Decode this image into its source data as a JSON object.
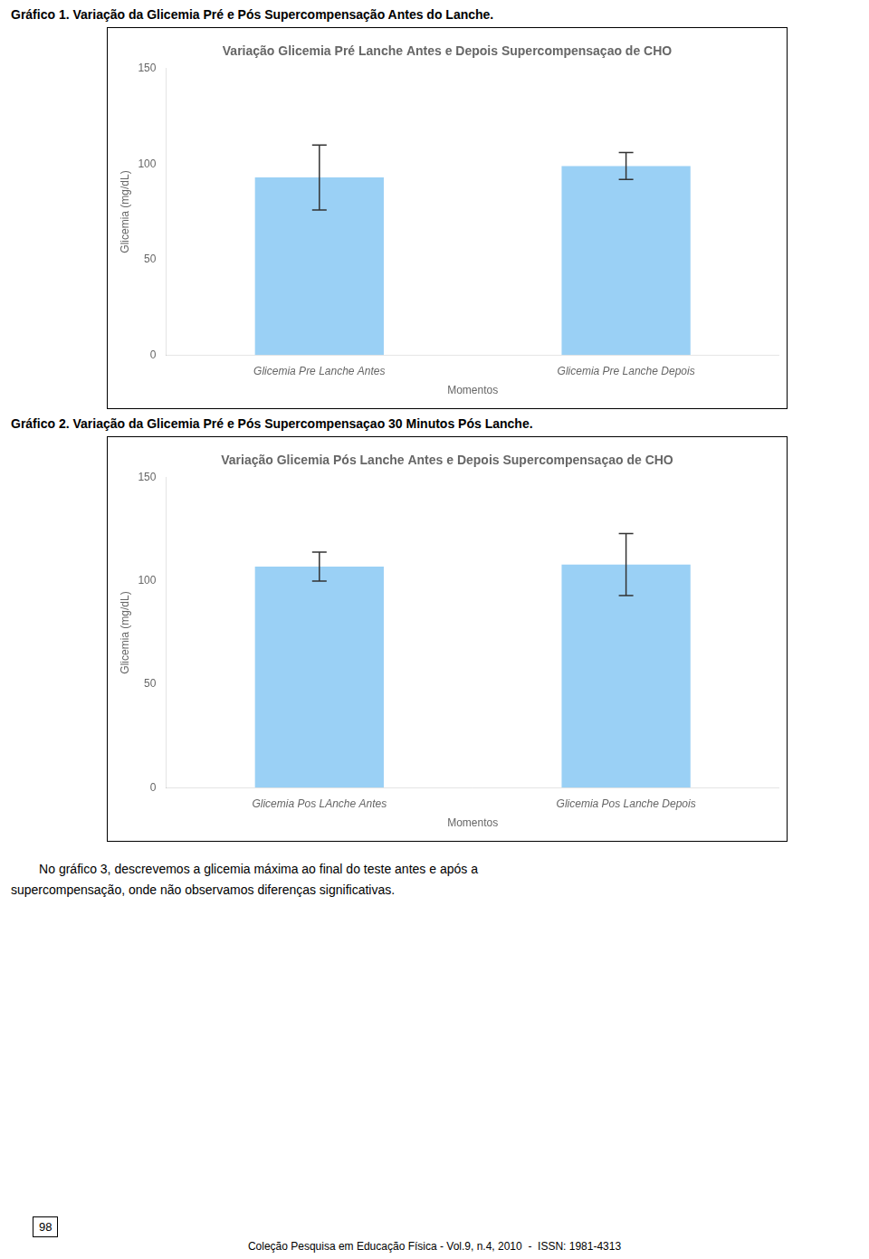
{
  "chart_data": [
    {
      "type": "bar",
      "annotations": [
        "Gráfico 1. Variação da Glicemia Pré e Pós Supercompensação Antes do Lanche."
      ],
      "title": "Variação Glicemia Pré Lanche Antes e Depois Supercompensaçao de CHO",
      "xlabel": "Momentos",
      "ylabel": "Glicemia (mg/dL)",
      "categories": [
        "Glicemia Pre Lanche Antes",
        "Glicemia Pre Lanche Depois"
      ],
      "values": [
        93,
        99
      ],
      "errors": [
        17,
        7
      ],
      "ylim": [
        0,
        150
      ],
      "yticks": [
        0,
        50,
        100,
        150
      ],
      "grid": false
    },
    {
      "type": "bar",
      "annotations": [
        "Gráfico 2. Variação da Glicemia Pré e Pós Supercompensaçao 30 Minutos Pós Lanche."
      ],
      "title": "Variação Glicemia Pós Lanche Antes e Depois Supercompensaçao de CHO",
      "xlabel": "Momentos",
      "ylabel": "Glicemia (mg/dL)",
      "categories": [
        "Glicemia Pos LAnche Antes",
        "Glicemia Pos Lanche Depois"
      ],
      "values": [
        107,
        108
      ],
      "errors": [
        7,
        15
      ],
      "ylim": [
        0,
        150
      ],
      "yticks": [
        0,
        50,
        100,
        150
      ],
      "grid": false
    }
  ],
  "annotations": [
    "        No gráfico 3, descrevemos a glicemia máxima ao final do teste antes e após a",
    "supercompensação, onde não observamos diferenças significativas.",
    "98",
    "Coleção Pesquisa em Educação Física - Vol.9, n.4, 2010  -  ISSN: 1981-4313"
  ]
}
